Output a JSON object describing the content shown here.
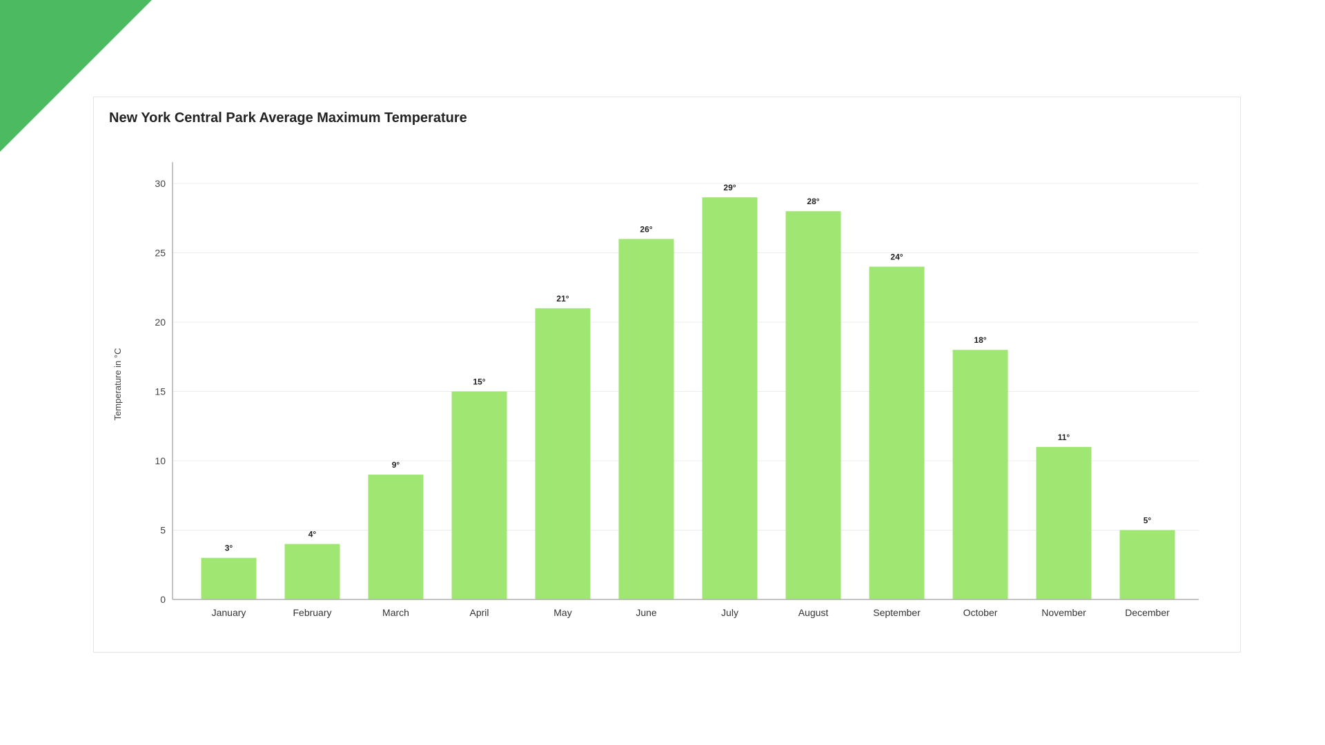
{
  "colors": {
    "accent": "#4cba61",
    "bar": "#a0e672",
    "grid": "#ececec",
    "axis": "#b0b0b0"
  },
  "chart_data": {
    "type": "bar",
    "title": "New York Central Park Average Maximum Temperature",
    "xlabel": "",
    "ylabel": "Temperature in °C",
    "categories": [
      "January",
      "February",
      "March",
      "April",
      "May",
      "June",
      "July",
      "August",
      "September",
      "October",
      "November",
      "December"
    ],
    "values": [
      3,
      4,
      9,
      15,
      21,
      26,
      29,
      28,
      24,
      18,
      11,
      5
    ],
    "data_labels": [
      "3°",
      "4°",
      "9°",
      "15°",
      "21°",
      "26°",
      "29°",
      "28°",
      "24°",
      "18°",
      "11°",
      "5°"
    ],
    "ylim": [
      0,
      30
    ],
    "yticks": [
      0,
      5,
      10,
      15,
      20,
      25,
      30
    ],
    "grid": true,
    "legend": "none"
  }
}
